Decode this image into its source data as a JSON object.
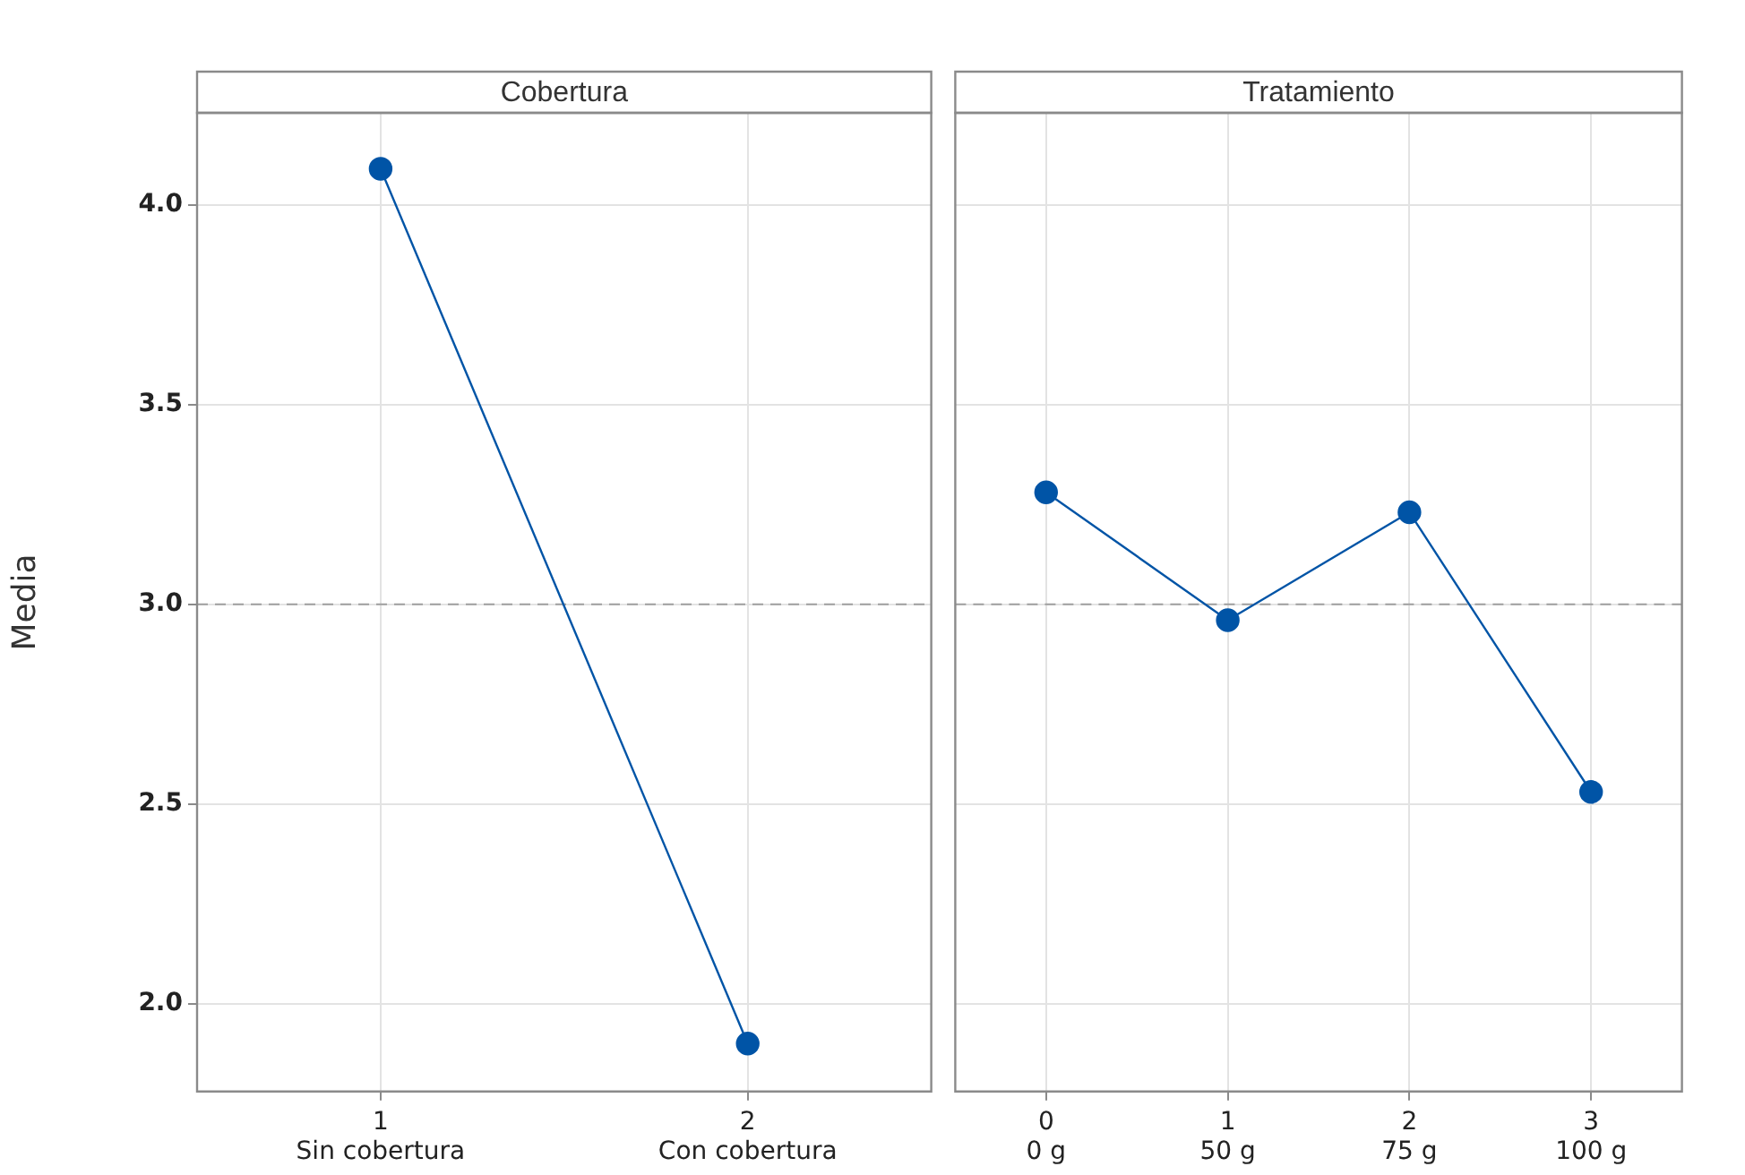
{
  "chart_data": [
    {
      "type": "line",
      "title": "Cobertura",
      "ylabel": "Media",
      "categories": [
        "1\nSin cobertura",
        "2\nCon cobertura"
      ],
      "series": [
        {
          "color": "#0054a6",
          "values": [
            4.09,
            1.9
          ]
        }
      ],
      "ylim": [
        1.78,
        4.23
      ],
      "yticks": [
        {
          "value": 2,
          "label": "2.0"
        },
        {
          "value": 2.5,
          "label": "2.5"
        },
        {
          "value": 3,
          "label": "3.0"
        },
        {
          "value": 3.5,
          "label": "3.5"
        },
        {
          "value": 4,
          "label": "4.0"
        }
      ],
      "ref_lines": [
        {
          "axis": "y",
          "value": 3,
          "color": "#a0a0a0",
          "line_style": "dashed"
        }
      ],
      "grid": true,
      "legend": false,
      "marker": "circle",
      "line_style": "solid"
    },
    {
      "type": "line",
      "title": "Tratamiento",
      "categories": [
        "0\n0 g",
        "1\n50 g",
        "2\n75 g",
        "3\n100 g"
      ],
      "series": [
        {
          "color": "#0054a6",
          "values": [
            3.28,
            2.96,
            3.23,
            2.53
          ]
        }
      ],
      "ylim": [
        1.78,
        4.23
      ],
      "yticks": [
        {
          "value": 2,
          "label": null
        },
        {
          "value": 2.5,
          "label": null
        },
        {
          "value": 3,
          "label": null
        },
        {
          "value": 3.5,
          "label": null
        },
        {
          "value": 4,
          "label": null
        }
      ],
      "ref_lines": [
        {
          "axis": "y",
          "value": 3,
          "color": "#a0a0a0",
          "line_style": "dashed"
        }
      ],
      "grid": true,
      "legend": false,
      "marker": "circle",
      "line_style": "solid",
      "tick_labels": "x"
    }
  ]
}
